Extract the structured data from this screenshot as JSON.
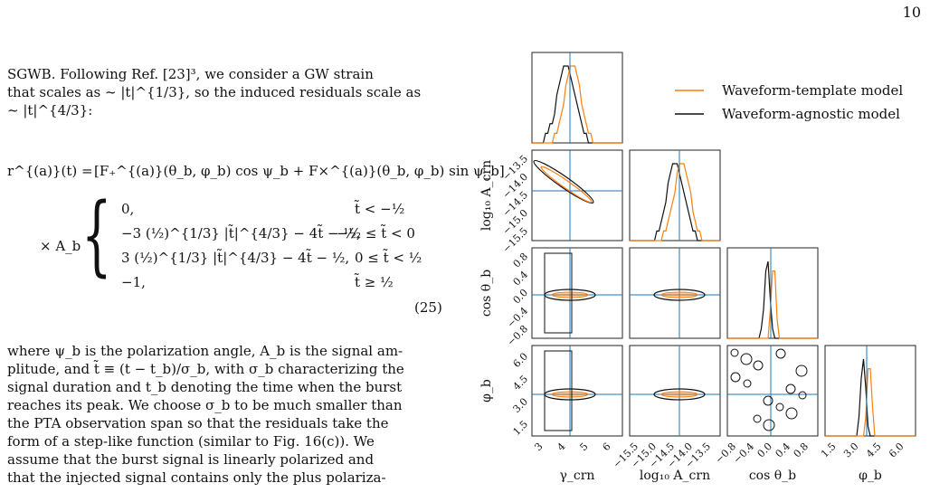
{
  "page_number": "10",
  "intro_lines": [
    "SGWB. Following Ref. [23]³, we consider a GW strain",
    "that scales as ~ |t|^{1/3}, so the induced residuals scale as",
    "~ |t|^{4/3}:"
  ],
  "equation": {
    "lhs": "r^{(a)}(t) =",
    "rhs_top": "[F₊^{(a)}(θ_b, φ_b) cos ψ_b + F×^{(a)}(θ_b, φ_b) sin ψ_b]",
    "prefix": "× A_b",
    "cases": [
      {
        "expr": "0,",
        "cond": "t̃ < −½"
      },
      {
        "expr": "−3 (½)^{1/3} |t̃|^{4/3} − 4t̃ − ½,",
        "cond": "−½ ≤ t̃ < 0"
      },
      {
        "expr": "3 (½)^{1/3} |t̃|^{4/3} − 4t̃ − ½,",
        "cond": "0 ≤ t̃ < ½"
      },
      {
        "expr": "−1,",
        "cond": "t̃ ≥ ½"
      }
    ],
    "number": "(25)"
  },
  "body_lines": [
    "where ψ_b is the polarization angle, A_b is the signal am-",
    "plitude, and t̃ ≡ (t − t_b)/σ_b, with σ_b characterizing the",
    "signal duration and t_b denoting the time when the burst",
    "reaches its peak. We choose σ_b to be much smaller than",
    "the PTA observation span so that the residuals take the",
    "form of a step-like function (similar to Fig. 16(c)). We",
    "assume that the burst signal is linearly polarized and",
    "that the injected signal contains only the plus polariza-"
  ],
  "figure": {
    "legend": [
      {
        "label": "Waveform-template model",
        "color": "#ff7f0e"
      },
      {
        "label": "Waveform-agnostic model",
        "color": "#111111"
      }
    ],
    "truth_color": "#1f77b4",
    "x_labels": [
      "γ_crn",
      "log₁₀ A_crn",
      "cos θ_b",
      "φ_b"
    ],
    "y_labels": [
      "log₁₀ A_crn",
      "cos θ_b",
      "φ_b"
    ],
    "ticks": {
      "gamma": [
        "3",
        "4",
        "5",
        "6"
      ],
      "logA": [
        "−15.5",
        "−15.0",
        "−14.5",
        "−14.0",
        "−13.5"
      ],
      "cos": [
        "−0.8",
        "−0.4",
        "0.0",
        "0.4",
        "0.8"
      ],
      "phi": [
        "1.5",
        "3.0",
        "4.5",
        "6.0"
      ]
    }
  }
}
